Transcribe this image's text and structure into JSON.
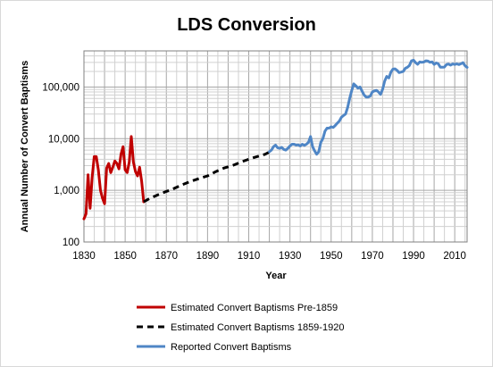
{
  "chart_data": {
    "type": "line",
    "title": "LDS Conversion",
    "xlabel": "Year",
    "ylabel": "Annual Number of Convert Baptisms",
    "xlim": [
      1830,
      2016
    ],
    "ylim": [
      100,
      500000
    ],
    "yscale": "log",
    "xticks": [
      1830,
      1850,
      1870,
      1890,
      1910,
      1930,
      1950,
      1970,
      1990,
      2010
    ],
    "yticks": [
      100,
      1000,
      10000,
      100000
    ],
    "ytick_labels": [
      "100",
      "1,000",
      "10,000",
      "100,000"
    ],
    "grid": {
      "x_major": true,
      "x_minor_step": 5,
      "y_major": true,
      "y_minor": true
    },
    "legend_position": "bottom",
    "series": [
      {
        "name": "Estimated Convert Baptisms Pre-1859",
        "color": "#c00000",
        "dash": "solid",
        "x": [
          1830,
          1831,
          1832,
          1833,
          1834,
          1835,
          1836,
          1837,
          1838,
          1839,
          1840,
          1841,
          1842,
          1843,
          1844,
          1845,
          1846,
          1847,
          1848,
          1849,
          1850,
          1851,
          1852,
          1853,
          1854,
          1855,
          1856,
          1857,
          1858,
          1859
        ],
        "y": [
          280,
          350,
          2000,
          450,
          1800,
          4500,
          4500,
          2500,
          1000,
          700,
          550,
          2700,
          3300,
          2200,
          2800,
          3700,
          3300,
          2600,
          5000,
          7000,
          2500,
          2200,
          3500,
          11000,
          3500,
          2300,
          1900,
          2800,
          1500,
          600
        ]
      },
      {
        "name": "Estimated Convert Baptisms 1859-1920",
        "color": "#000000",
        "dash": "dashed",
        "x": [
          1859,
          1862,
          1866,
          1870,
          1874,
          1878,
          1882,
          1886,
          1890,
          1894,
          1898,
          1902,
          1906,
          1910,
          1914,
          1918,
          1920
        ],
        "y": [
          600,
          700,
          820,
          950,
          1100,
          1300,
          1500,
          1700,
          1900,
          2300,
          2700,
          3000,
          3500,
          4000,
          4500,
          5000,
          5500
        ]
      },
      {
        "name": "Reported Convert Baptisms",
        "color": "#4f86c6",
        "dash": "solid",
        "x": [
          1920,
          1921,
          1922,
          1923,
          1924,
          1925,
          1926,
          1927,
          1928,
          1929,
          1930,
          1931,
          1932,
          1933,
          1934,
          1935,
          1936,
          1937,
          1938,
          1939,
          1940,
          1941,
          1942,
          1943,
          1944,
          1945,
          1946,
          1947,
          1948,
          1949,
          1950,
          1951,
          1952,
          1953,
          1954,
          1955,
          1956,
          1957,
          1958,
          1959,
          1960,
          1961,
          1962,
          1963,
          1964,
          1965,
          1966,
          1967,
          1968,
          1969,
          1970,
          1971,
          1972,
          1973,
          1974,
          1975,
          1976,
          1977,
          1978,
          1979,
          1980,
          1981,
          1982,
          1983,
          1984,
          1985,
          1986,
          1987,
          1988,
          1989,
          1990,
          1991,
          1992,
          1993,
          1994,
          1995,
          1996,
          1997,
          1998,
          1999,
          2000,
          2001,
          2002,
          2003,
          2004,
          2005,
          2006,
          2007,
          2008,
          2009,
          2010,
          2011,
          2012,
          2013,
          2014,
          2015,
          2016
        ],
        "y": [
          5600,
          6000,
          7000,
          7500,
          6700,
          6500,
          6800,
          6200,
          6000,
          6500,
          7200,
          7800,
          7800,
          7500,
          7600,
          7200,
          7800,
          7400,
          7800,
          8500,
          11000,
          7000,
          5800,
          5000,
          5600,
          8500,
          10000,
          14000,
          16000,
          16000,
          17000,
          16500,
          18000,
          20000,
          22000,
          26000,
          28000,
          30000,
          40000,
          60000,
          85000,
          115000,
          105000,
          95000,
          100000,
          83000,
          70000,
          64000,
          64000,
          67000,
          80000,
          84000,
          86000,
          80000,
          72000,
          90000,
          130000,
          160000,
          150000,
          195000,
          222000,
          225000,
          210000,
          190000,
          195000,
          200000,
          230000,
          240000,
          260000,
          320000,
          330000,
          297000,
          275000,
          305000,
          300000,
          305000,
          321000,
          317000,
          300000,
          306000,
          274000,
          292000,
          282000,
          242000,
          241000,
          243000,
          272000,
          279000,
          265000,
          280000,
          273000,
          281000,
          272000,
          282000,
          296000,
          258000,
          240000
        ]
      }
    ]
  }
}
